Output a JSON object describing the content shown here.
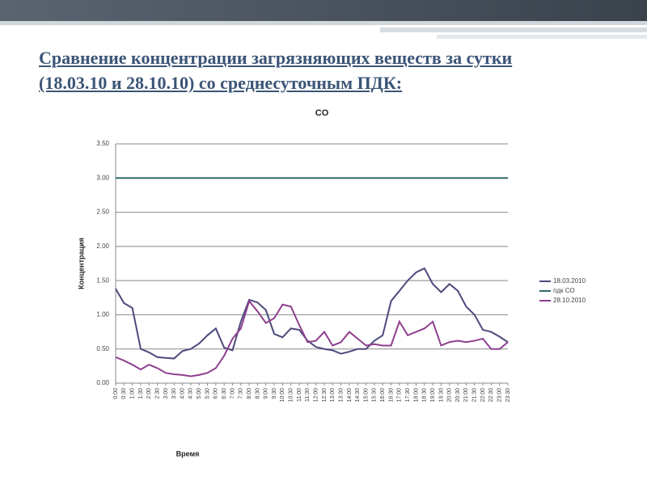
{
  "title": "Сравнение концентрации загрязняющих веществ за сутки (18.03.10 и 28.10.10) со среднесуточным ПДК:",
  "chart_data": {
    "type": "line",
    "title": "CO",
    "x_label": "Время",
    "y_label": "Концентрация",
    "categories": [
      "0:00",
      "0:30",
      "1:00",
      "1:30",
      "2:00",
      "2:30",
      "3:00",
      "3:30",
      "4:00",
      "4:30",
      "5:00",
      "5:30",
      "6:00",
      "6:30",
      "7:00",
      "7:30",
      "8:00",
      "8:30",
      "9:00",
      "9:30",
      "10:00",
      "10:30",
      "11:00",
      "11:30",
      "12:00",
      "12:30",
      "13:00",
      "13:30",
      "14:00",
      "14:30",
      "15:00",
      "15:30",
      "16:00",
      "16:30",
      "17:00",
      "17:30",
      "18:00",
      "18:30",
      "19:00",
      "19:30",
      "20:00",
      "20:30",
      "21:00",
      "21:30",
      "22:00",
      "22:30",
      "23:00",
      "23:30"
    ],
    "series": [
      {
        "name": "18.03.2010",
        "color": "#4b4a7c",
        "values": [
          1.38,
          1.17,
          1.1,
          0.5,
          0.45,
          0.38,
          0.37,
          0.36,
          0.47,
          0.5,
          0.58,
          0.7,
          0.8,
          0.52,
          0.48,
          0.9,
          1.22,
          1.18,
          1.07,
          0.72,
          0.67,
          0.8,
          0.78,
          0.62,
          0.53,
          0.5,
          0.48,
          0.43,
          0.46,
          0.5,
          0.5,
          0.62,
          0.7,
          1.2,
          1.35,
          1.5,
          1.62,
          1.68,
          1.45,
          1.33,
          1.45,
          1.35,
          1.12,
          1.0,
          0.78,
          0.75,
          0.68,
          0.6
        ]
      },
      {
        "name": "пдк CO",
        "color": "#2f6b6b",
        "values": [
          3,
          3,
          3,
          3,
          3,
          3,
          3,
          3,
          3,
          3,
          3,
          3,
          3,
          3,
          3,
          3,
          3,
          3,
          3,
          3,
          3,
          3,
          3,
          3,
          3,
          3,
          3,
          3,
          3,
          3,
          3,
          3,
          3,
          3,
          3,
          3,
          3,
          3,
          3,
          3,
          3,
          3,
          3,
          3,
          3,
          3,
          3,
          3
        ]
      },
      {
        "name": "28.10.2010",
        "color": "#8e3f8e",
        "values": [
          0.38,
          0.33,
          0.27,
          0.2,
          0.27,
          0.22,
          0.15,
          0.13,
          0.12,
          0.1,
          0.12,
          0.15,
          0.22,
          0.4,
          0.65,
          0.8,
          1.2,
          1.05,
          0.88,
          0.95,
          1.15,
          1.12,
          0.85,
          0.6,
          0.62,
          0.75,
          0.55,
          0.6,
          0.75,
          0.65,
          0.55,
          0.57,
          0.55,
          0.55,
          0.9,
          0.7,
          0.75,
          0.8,
          0.9,
          0.55,
          0.6,
          0.62,
          0.6,
          0.62,
          0.65,
          0.5,
          0.5,
          0.6
        ]
      }
    ],
    "ylim": [
      0,
      3.5
    ],
    "yticks": [
      {
        "value": 0,
        "label": "0.00"
      },
      {
        "value": 0.5,
        "label": "0.50"
      },
      {
        "value": 1,
        "label": "1.00"
      },
      {
        "value": 1.5,
        "label": "1.50"
      },
      {
        "value": 2,
        "label": "2.00"
      },
      {
        "value": 2.5,
        "label": "2.50"
      },
      {
        "value": 3,
        "label": "3.00"
      },
      {
        "value": 3.5,
        "label": "3.50"
      }
    ],
    "grid": true,
    "legend": "right"
  }
}
